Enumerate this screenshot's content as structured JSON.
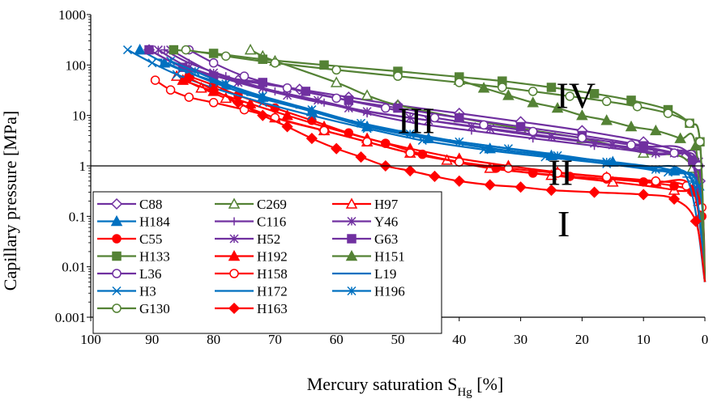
{
  "chart_data": {
    "type": "line",
    "y_scale": "log",
    "x_reversed": true,
    "xlabel_main": "Mercury saturation S",
    "xlabel_sub": "Hg",
    "xlabel_unit": " [%]",
    "ylabel": "Capillary pressure [MPa]",
    "xlim": [
      100,
      0
    ],
    "ylim": [
      0.001,
      1000
    ],
    "x_ticks": [
      100,
      90,
      80,
      70,
      60,
      50,
      40,
      30,
      20,
      10,
      0
    ],
    "y_ticks": [
      {
        "v": 0.001,
        "label": "0.001"
      },
      {
        "v": 0.01,
        "label": "0.01"
      },
      {
        "v": 0.1,
        "label": "0.1"
      },
      {
        "v": 1,
        "label": "1"
      },
      {
        "v": 10,
        "label": "10"
      },
      {
        "v": 100,
        "label": "100"
      },
      {
        "v": 1000,
        "label": "1000"
      }
    ],
    "grid": false,
    "threshold_line_y": 1,
    "legend_position": "bottom-left",
    "region_labels": [
      {
        "text": "I",
        "x": 23,
        "y": 0.04
      },
      {
        "text": "II",
        "x": 23.5,
        "y": 0.42
      },
      {
        "text": "III",
        "x": 47,
        "y": 4.5
      },
      {
        "text": "IV",
        "x": 21,
        "y": 14
      }
    ],
    "series": [
      {
        "name": "C88",
        "color": "#7030A0",
        "marker": "diamond-open",
        "x": [
          90.5,
          84,
          76,
          66,
          58,
          50,
          40,
          30,
          20,
          10,
          3,
          0.8,
          0
        ],
        "y": [
          200,
          80,
          50,
          33,
          23,
          16,
          11,
          7.5,
          5,
          3,
          1.6,
          0.5,
          0.005
        ]
      },
      {
        "name": "C269",
        "color": "#548235",
        "marker": "triangle-open",
        "x": [
          74,
          72,
          70,
          60,
          55,
          50,
          40,
          30,
          20,
          10,
          2,
          0
        ],
        "y": [
          200,
          150,
          120,
          45,
          25,
          16,
          9,
          5.5,
          3.5,
          1.8,
          0.9,
          0.005
        ]
      },
      {
        "name": "H97",
        "color": "#FF0000",
        "marker": "triangle-open",
        "x": [
          86,
          82,
          78,
          70,
          62,
          55,
          48,
          42,
          35,
          25,
          15,
          5,
          1,
          0
        ],
        "y": [
          60,
          35,
          22,
          9,
          5,
          3,
          1.8,
          1.3,
          0.9,
          0.65,
          0.48,
          0.33,
          0.2,
          0.005
        ]
      },
      {
        "name": "H184",
        "color": "#0070C0",
        "marker": "triangle",
        "x": [
          92,
          88,
          84,
          78,
          72,
          64,
          55,
          45,
          35,
          25,
          15,
          5,
          1,
          0
        ],
        "y": [
          200,
          110,
          70,
          40,
          23,
          12,
          6,
          3.5,
          2.2,
          1.6,
          1.2,
          0.8,
          0.4,
          0.005
        ]
      },
      {
        "name": "C116",
        "color": "#7030A0",
        "marker": "plus",
        "x": [
          88,
          84,
          78,
          70,
          62,
          55,
          47,
          38,
          28,
          18,
          8,
          2,
          0
        ],
        "y": [
          200,
          110,
          60,
          30,
          18,
          11,
          7,
          5,
          3.5,
          2.5,
          1.7,
          1.1,
          0.005
        ]
      },
      {
        "name": "Y46",
        "color": "#7030A0",
        "marker": "asterisk",
        "x": [
          89,
          84,
          76,
          68,
          58,
          48,
          38,
          28,
          18,
          8,
          2,
          0
        ],
        "y": [
          200,
          90,
          45,
          25,
          14,
          9,
          6,
          4,
          2.8,
          1.8,
          1.2,
          0.005
        ]
      },
      {
        "name": "C55",
        "color": "#FF0000",
        "marker": "circle",
        "x": [
          84,
          80,
          76,
          70,
          64,
          58,
          52,
          46,
          40,
          34,
          28,
          22,
          16,
          10,
          5,
          2,
          0.5,
          0
        ],
        "y": [
          60,
          40,
          25,
          14,
          8,
          4.5,
          2.8,
          1.7,
          1.2,
          0.9,
          0.72,
          0.62,
          0.55,
          0.48,
          0.4,
          0.3,
          0.1,
          0.005
        ]
      },
      {
        "name": "H52",
        "color": "#7030A0",
        "marker": "asterisk",
        "x": [
          87,
          80,
          72,
          63,
          55,
          45,
          35,
          25,
          15,
          5,
          1,
          0
        ],
        "y": [
          200,
          70,
          35,
          20,
          12,
          8,
          5.5,
          3.8,
          2.6,
          1.8,
          1.2,
          0.005
        ]
      },
      {
        "name": "G63",
        "color": "#7030A0",
        "marker": "square",
        "x": [
          90.5,
          85,
          80,
          72,
          65,
          58,
          50,
          40,
          30,
          20,
          10,
          2,
          0
        ],
        "y": [
          200,
          90,
          60,
          45,
          30,
          20,
          14,
          9,
          6,
          4,
          2.5,
          1.3,
          0.005
        ]
      },
      {
        "name": "H133",
        "color": "#548235",
        "marker": "square",
        "x": [
          86.5,
          80,
          72,
          62,
          50,
          40,
          33,
          25,
          18,
          12,
          6,
          2.5,
          0.8,
          0
        ],
        "y": [
          200,
          170,
          130,
          100,
          75,
          58,
          48,
          36,
          27,
          20,
          13,
          7,
          3,
          0.005
        ]
      },
      {
        "name": "H192",
        "color": "#FF0000",
        "marker": "triangle",
        "x": [
          85,
          80,
          74,
          68,
          62,
          55,
          48,
          40,
          32,
          24,
          16,
          8,
          2,
          0
        ],
        "y": [
          50,
          30,
          17,
          10,
          6,
          3.5,
          2.2,
          1.4,
          1,
          0.75,
          0.6,
          0.48,
          0.35,
          0.005
        ]
      },
      {
        "name": "H151",
        "color": "#548235",
        "marker": "triangle",
        "x": [
          40,
          36,
          32,
          28,
          24,
          20,
          16,
          12,
          8,
          4,
          1.5,
          0
        ],
        "y": [
          50,
          35,
          25,
          18,
          14,
          10,
          8,
          6,
          5,
          3.5,
          2.5,
          0.005
        ]
      },
      {
        "name": "L36",
        "color": "#7030A0",
        "marker": "circle-open",
        "x": [
          84,
          80,
          75,
          68,
          60,
          52,
          44,
          36,
          28,
          20,
          12,
          5,
          1,
          0
        ],
        "y": [
          200,
          110,
          60,
          35,
          22,
          14,
          9,
          6.5,
          4.8,
          3.6,
          2.6,
          1.8,
          1,
          0.005
        ]
      },
      {
        "name": "H158",
        "color": "#FF0000",
        "marker": "circle-open",
        "x": [
          89.5,
          87,
          84,
          80,
          75,
          70,
          62,
          55,
          48,
          40,
          32,
          24,
          16,
          8,
          3,
          0.5,
          0
        ],
        "y": [
          50,
          32,
          23,
          18,
          13,
          9,
          5,
          3,
          1.8,
          1.2,
          0.9,
          0.72,
          0.6,
          0.5,
          0.4,
          0.15,
          0.005
        ]
      },
      {
        "name": "L19",
        "color": "#0070C0",
        "marker": "dash",
        "x": [
          88,
          84,
          78,
          72,
          64,
          56,
          48,
          40,
          32,
          24,
          16,
          8,
          2,
          0
        ],
        "y": [
          110,
          70,
          40,
          22,
          12,
          6.5,
          4,
          2.8,
          2,
          1.5,
          1.1,
          0.8,
          0.5,
          0.005
        ]
      },
      {
        "name": "H3",
        "color": "#0070C0",
        "marker": "x",
        "x": [
          94,
          90,
          86,
          80,
          72,
          64,
          55,
          46,
          36,
          26,
          16,
          6,
          1,
          0
        ],
        "y": [
          200,
          110,
          65,
          35,
          18,
          10,
          5.5,
          3.2,
          2.1,
          1.5,
          1.1,
          0.75,
          0.4,
          0.005
        ]
      },
      {
        "name": "H172",
        "color": "#0070C0",
        "marker": "dash",
        "x": [
          89,
          85,
          80,
          74,
          66,
          58,
          50,
          42,
          34,
          26,
          18,
          10,
          3,
          0
        ],
        "y": [
          130,
          80,
          45,
          25,
          14,
          8,
          5,
          3.3,
          2.4,
          1.8,
          1.3,
          0.95,
          0.6,
          0.005
        ]
      },
      {
        "name": "H196",
        "color": "#0070C0",
        "marker": "asterisk",
        "x": [
          87,
          83,
          78,
          72,
          64,
          56,
          48,
          40,
          32,
          24,
          16,
          8,
          2,
          0
        ],
        "y": [
          120,
          75,
          42,
          24,
          13,
          7,
          4.3,
          3,
          2.2,
          1.6,
          1.2,
          0.85,
          0.5,
          0.005
        ]
      },
      {
        "name": "G130",
        "color": "#548235",
        "marker": "circle-open",
        "x": [
          84.5,
          78,
          70,
          60,
          50,
          40,
          33,
          28,
          22,
          16,
          11,
          6,
          2.5,
          0.8,
          0
        ],
        "y": [
          200,
          150,
          110,
          80,
          60,
          45,
          36,
          30,
          24,
          19,
          15,
          11,
          7,
          3,
          0.005
        ]
      },
      {
        "name": "H163",
        "color": "#FF0000",
        "marker": "diamond",
        "x": [
          84,
          80,
          76,
          72,
          68,
          64,
          60,
          56,
          52,
          48,
          44,
          40,
          35,
          30,
          25,
          18,
          10,
          5,
          1.5,
          0
        ],
        "y": [
          55,
          32,
          18,
          10,
          6,
          3.5,
          2.2,
          1.5,
          1,
          0.8,
          0.62,
          0.5,
          0.42,
          0.38,
          0.33,
          0.3,
          0.27,
          0.22,
          0.08,
          0.005
        ]
      }
    ]
  }
}
